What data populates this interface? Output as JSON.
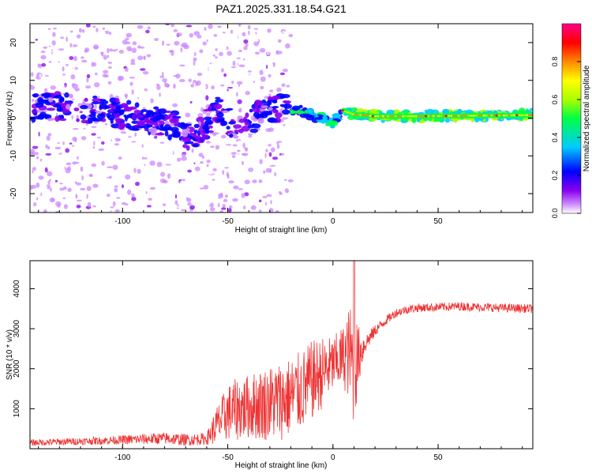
{
  "title": "PAZ1.2025.331.18.54.G21",
  "chart_data": [
    {
      "type": "heatmap",
      "xlabel": "Height of straight line (km)",
      "ylabel": "Frequency (Hz)",
      "xlim": [
        -144,
        95
      ],
      "ylim": [
        -25,
        25
      ],
      "xticks": [
        -100,
        -50,
        0,
        50
      ],
      "yticks": [
        -20,
        -10,
        0,
        10,
        20
      ],
      "colorbar": {
        "label": "Normalized spectral amplitude",
        "range": [
          0,
          1
        ],
        "ticks": [
          "0.0",
          "0.2",
          "0.4",
          "0.6",
          "0.8"
        ],
        "tick_values": [
          0,
          0.2,
          0.4,
          0.6,
          0.8
        ],
        "colors": [
          "#ffffff",
          "#cc88ff",
          "#8800ee",
          "#0000ff",
          "#00ccff",
          "#00ff44",
          "#aaff00",
          "#ffff00",
          "#ff8800",
          "#ff0000",
          "#ff0088"
        ]
      },
      "ridge": {
        "description_points_x": [
          -130,
          -110,
          -90,
          -75,
          -66,
          -55,
          -45,
          -35,
          -25,
          -15,
          -5,
          0,
          5,
          10,
          20,
          40,
          60,
          80,
          95
        ],
        "description_points_f": [
          3,
          2,
          0,
          -2,
          -6,
          2,
          -3,
          1,
          3,
          2,
          0,
          -1,
          2,
          1,
          0.5,
          0.5,
          0.6,
          0.7,
          0.8
        ]
      }
    },
    {
      "type": "line",
      "xlabel": "Height of straight line (km)",
      "ylabel": "SNR (10 * v/v)",
      "xlim": [
        -144,
        95
      ],
      "ylim": [
        0,
        4700
      ],
      "xticks": [
        -100,
        -50,
        0,
        50
      ],
      "yticks": [
        1000,
        2000,
        3000,
        4000
      ],
      "color": "#ee3333",
      "envelope_x": [
        -144,
        -110,
        -80,
        -70,
        -60,
        -55,
        -50,
        -45,
        -40,
        -35,
        -30,
        -25,
        -20,
        -15,
        -10,
        -5,
        0,
        5,
        8,
        10,
        12,
        15,
        20,
        25,
        30,
        35,
        40,
        50,
        60,
        70,
        80,
        95
      ],
      "envelope_mean": [
        150,
        200,
        260,
        220,
        250,
        600,
        900,
        1000,
        1050,
        1100,
        1150,
        1200,
        1300,
        1450,
        1700,
        1900,
        2100,
        2300,
        2400,
        2000,
        2300,
        2600,
        2950,
        3200,
        3400,
        3480,
        3520,
        3540,
        3560,
        3540,
        3520,
        3500
      ],
      "envelope_noise": [
        80,
        100,
        150,
        150,
        150,
        500,
        700,
        800,
        800,
        900,
        950,
        1000,
        1000,
        1000,
        1000,
        900,
        700,
        800,
        1200,
        1500,
        800,
        250,
        150,
        120,
        110,
        110,
        110,
        110,
        110,
        110,
        110,
        110
      ],
      "spike_x": [
        10
      ],
      "spike_values": [
        4700
      ]
    }
  ]
}
